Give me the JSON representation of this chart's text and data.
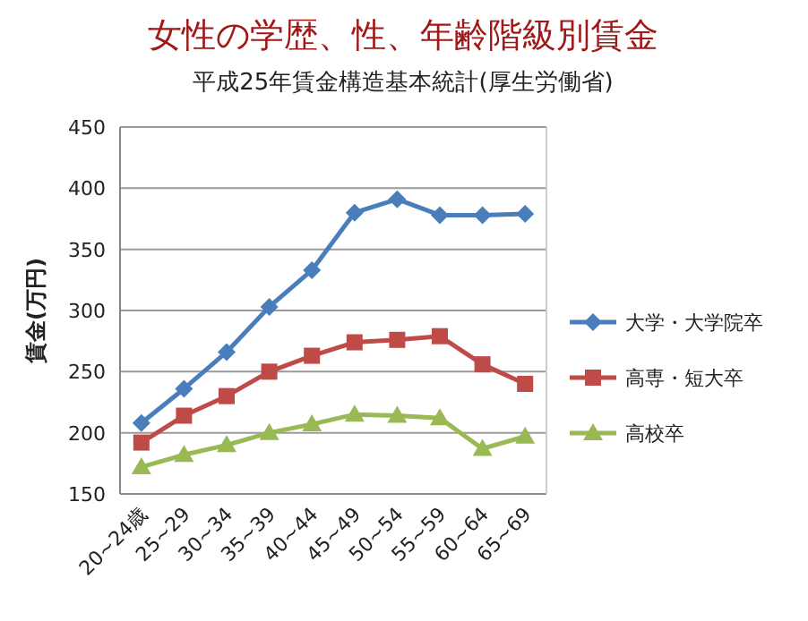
{
  "chart_data": {
    "type": "line",
    "title": "女性の学歴、性、年齢階級別賃金",
    "subtitle": "平成25年賃金構造基本統計(厚生労働省)",
    "ylabel": "賃金(万円)",
    "categories": [
      "20~24歳",
      "25~29",
      "30~34",
      "35~39",
      "40~44",
      "45~49",
      "50~54",
      "55~59",
      "60~64",
      "65~69"
    ],
    "series": [
      {
        "name": "大学・大学院卒",
        "color": "#4a7ebb",
        "marker": "diamond",
        "values": [
          208,
          236,
          266,
          303,
          333,
          380,
          391,
          378,
          378,
          379
        ]
      },
      {
        "name": "高専・短大卒",
        "color": "#be4b48",
        "marker": "square",
        "values": [
          192,
          214,
          230,
          250,
          263,
          274,
          276,
          279,
          256,
          240
        ]
      },
      {
        "name": "高校卒",
        "color": "#98b954",
        "marker": "triangle",
        "values": [
          172,
          182,
          190,
          200,
          207,
          215,
          214,
          212,
          187,
          197
        ]
      }
    ],
    "ylim": [
      150,
      450
    ],
    "yticks": [
      150,
      200,
      250,
      300,
      350,
      400,
      450
    ],
    "grid": "y",
    "legend": "right"
  }
}
